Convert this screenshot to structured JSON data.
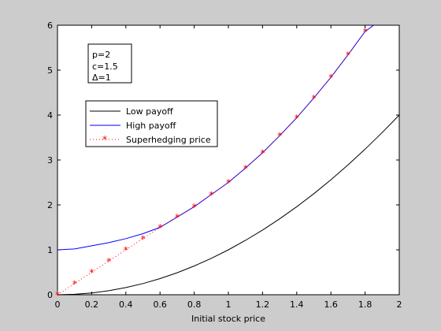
{
  "chart_data": {
    "type": "line",
    "xlabel": "Initial stock price",
    "ylabel": "",
    "title": "",
    "xlim": [
      0,
      2
    ],
    "ylim": [
      0,
      6
    ],
    "xticks": [
      "0",
      "0.2",
      "0.4",
      "0.6",
      "0.8",
      "1",
      "1.2",
      "1.4",
      "1.6",
      "1.8",
      "2"
    ],
    "yticks": [
      "0",
      "1",
      "2",
      "3",
      "4",
      "5",
      "6"
    ],
    "grid": false,
    "legend_position": "upper-left",
    "params_box": [
      "p=2",
      "c=1.5",
      "Δ=1"
    ],
    "series": [
      {
        "name": "Low payoff",
        "color": "#000000",
        "style": "solid",
        "x": [
          0,
          0.1,
          0.2,
          0.3,
          0.4,
          0.5,
          0.6,
          0.7,
          0.8,
          0.9,
          1.0,
          1.1,
          1.2,
          1.3,
          1.4,
          1.5,
          1.6,
          1.7,
          1.8,
          1.9,
          2.0
        ],
        "y": [
          0,
          0.01,
          0.04,
          0.09,
          0.16,
          0.25,
          0.36,
          0.49,
          0.64,
          0.81,
          1.0,
          1.21,
          1.44,
          1.69,
          1.96,
          2.25,
          2.56,
          2.89,
          3.24,
          3.61,
          4.0
        ]
      },
      {
        "name": "High payoff",
        "color": "#0000ff",
        "style": "solid",
        "x": [
          0,
          0.1,
          0.2,
          0.3,
          0.4,
          0.5,
          0.6,
          0.7,
          0.8,
          0.9,
          1.0,
          1.1,
          1.2,
          1.3,
          1.4,
          1.5,
          1.6,
          1.7,
          1.8,
          1.85
        ],
        "y": [
          1.0,
          1.02,
          1.09,
          1.16,
          1.25,
          1.36,
          1.5,
          1.73,
          1.96,
          2.23,
          2.5,
          2.82,
          3.16,
          3.54,
          3.94,
          4.38,
          4.84,
          5.34,
          5.86,
          6.0
        ]
      },
      {
        "name": "Superhedging price",
        "color": "#ff0000",
        "style": "dotted-star",
        "x": [
          0,
          0.1,
          0.2,
          0.3,
          0.4,
          0.5,
          0.6,
          0.7,
          0.8,
          0.9,
          1.0,
          1.1,
          1.2,
          1.3,
          1.4,
          1.5,
          1.6,
          1.7,
          1.8
        ],
        "y": [
          0,
          0.25,
          0.5,
          0.75,
          1.0,
          1.25,
          1.5,
          1.73,
          1.96,
          2.23,
          2.5,
          2.82,
          3.16,
          3.54,
          3.94,
          4.38,
          4.84,
          5.34,
          5.86
        ]
      }
    ]
  }
}
